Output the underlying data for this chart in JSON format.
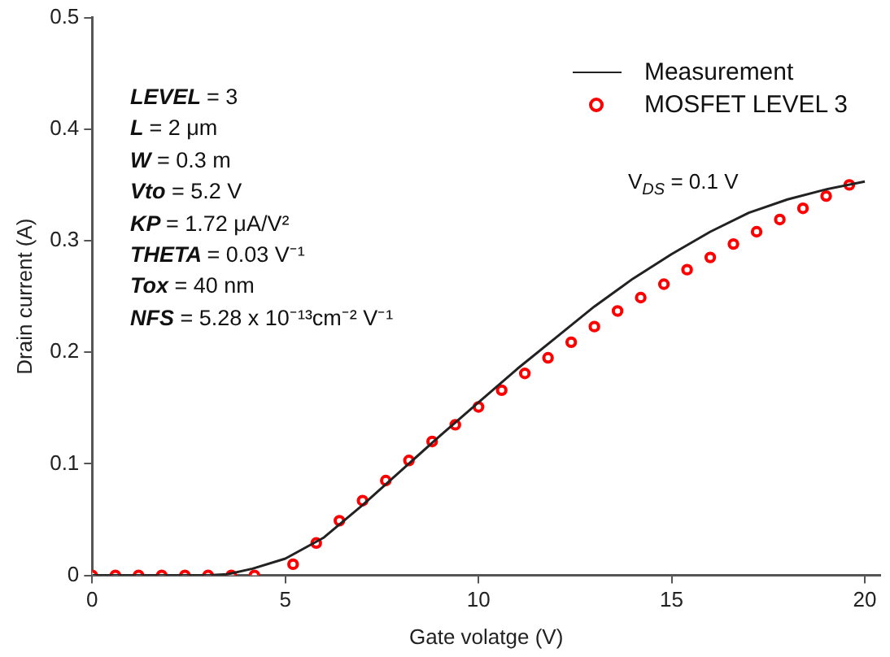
{
  "chart_data": {
    "type": "line",
    "xlabel": "Gate volatge (V)",
    "ylabel": "Drain current (A)",
    "xlim": [
      0,
      20.4
    ],
    "xticks": [
      0,
      5,
      10,
      15,
      20
    ],
    "ylim": [
      0,
      0.5
    ],
    "yticks": [
      0,
      0.1,
      0.2,
      0.3,
      0.4,
      0.5
    ],
    "grid": false,
    "legend": "top right",
    "series": [
      {
        "name": "Measurement",
        "color": "#222222",
        "marker": "none",
        "line_style": "solid",
        "x": [
          0,
          1,
          2,
          3,
          3.5,
          4.15,
          5,
          6,
          7,
          8,
          9,
          10,
          11,
          12,
          13,
          14,
          15,
          16,
          17,
          18,
          19,
          20
        ],
        "values": [
          0,
          0,
          0,
          0,
          0.001,
          0.006,
          0.015,
          0.034,
          0.063,
          0.094,
          0.125,
          0.155,
          0.185,
          0.213,
          0.241,
          0.266,
          0.288,
          0.308,
          0.325,
          0.337,
          0.346,
          0.353
        ]
      },
      {
        "name": "MOSFET LEVEL 3",
        "type": "scatter",
        "color": "#ff0000",
        "marker": "circle",
        "x": [
          0,
          0.6,
          1.2,
          1.8,
          2.4,
          3.0,
          3.6,
          4.2,
          5.2,
          5.8,
          6.4,
          7.0,
          7.6,
          8.2,
          8.8,
          9.4,
          10.0,
          10.6,
          11.2,
          11.8,
          12.4,
          13.0,
          13.6,
          14.2,
          14.8,
          15.4,
          16.0,
          16.6,
          17.2,
          17.8,
          18.4,
          19.0,
          19.6
        ],
        "values": [
          0,
          0,
          0,
          0,
          0,
          0,
          0,
          0,
          0.01,
          0.029,
          0.049,
          0.067,
          0.085,
          0.103,
          0.12,
          0.135,
          0.151,
          0.166,
          0.181,
          0.195,
          0.209,
          0.223,
          0.237,
          0.249,
          0.261,
          0.274,
          0.285,
          0.297,
          0.308,
          0.319,
          0.329,
          0.34,
          0.35
        ]
      }
    ],
    "annotations": [
      "LEVEL = 3",
      "L = 2 μm",
      "W = 0.3 m",
      "Vto = 5.2 V",
      "KP = 1.72 μA/V²",
      "THETA = 0.03 V⁻¹",
      "Tox = 40 nm",
      "NFS = 5.28 x 10⁻¹³cm⁻² V⁻¹",
      "V$_{DS}$ = 0.1 V"
    ]
  }
}
